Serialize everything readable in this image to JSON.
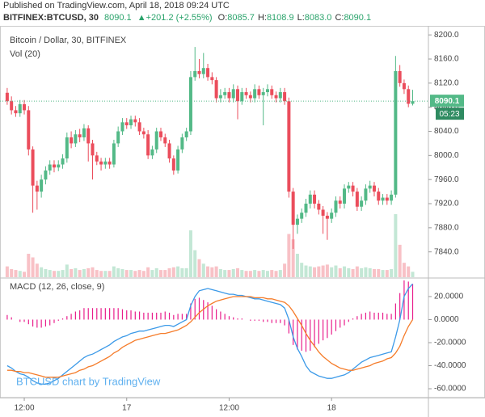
{
  "header": {
    "source": "Published on TradingView.com, April 18, 2018 09:24 UTC",
    "symbol": "BITFINEX:BTCUSD, 30",
    "change": "▲+201.2 (+2.55%)",
    "ohlc": [
      {
        "key": "O:",
        "value": "8085.7"
      },
      {
        "key": "H:",
        "value": "8108.9"
      },
      {
        "key": "L:",
        "value": "8083.0"
      },
      {
        "key": "C:",
        "value": "8090.1"
      }
    ]
  },
  "watermark": "BTCUSD chart by TradingView",
  "chart_data": [
    {
      "type": "candlestick",
      "title": "Bitcoin / Dollar, 30, BITFINEX",
      "subtitle": "Vol (20)",
      "up_color": "#53b987",
      "down_color": "#eb4d5c",
      "categories": [
        null,
        null,
        null,
        null,
        "12:00",
        null,
        null,
        null,
        null,
        null,
        null,
        null,
        null,
        null,
        null,
        null,
        null,
        null,
        null,
        null,
        null,
        null,
        null,
        null,
        null,
        null,
        null,
        null,
        "17",
        null,
        null,
        null,
        null,
        null,
        null,
        null,
        null,
        null,
        null,
        null,
        null,
        null,
        null,
        null,
        null,
        null,
        null,
        null,
        null,
        null,
        null,
        null,
        "12:00",
        null,
        null,
        null,
        null,
        null,
        null,
        null,
        null,
        null,
        null,
        null,
        null,
        null,
        null,
        null,
        null,
        null,
        null,
        null,
        null,
        null,
        null,
        null,
        "18",
        null,
        null,
        null,
        null,
        null,
        null,
        null,
        null,
        null,
        null,
        null,
        null,
        null,
        null,
        null,
        null,
        null,
        null,
        null
      ],
      "open": [
        8104,
        8090,
        8075,
        8070,
        8085,
        8075,
        8010,
        7950,
        7940,
        7960,
        7975,
        7985,
        7980,
        7985,
        7995,
        8030,
        8020,
        8035,
        8030,
        8045,
        8020,
        8000,
        7990,
        7985,
        7990,
        7985,
        8020,
        8040,
        8055,
        8050,
        8060,
        8055,
        8040,
        8035,
        8000,
        8010,
        8040,
        8030,
        8020,
        7995,
        7975,
        8010,
        8030,
        8040,
        8130,
        8140,
        8135,
        8145,
        8130,
        8125,
        8095,
        8100,
        8105,
        8095,
        8110,
        8090,
        8105,
        8100,
        8095,
        8110,
        8100,
        8105,
        8110,
        8100,
        8095,
        8105,
        8090,
        7940,
        7885,
        7895,
        7905,
        7920,
        7935,
        7920,
        7910,
        7900,
        7895,
        7905,
        7925,
        7920,
        7945,
        7950,
        7940,
        7915,
        7925,
        7945,
        7950,
        7940,
        7925,
        7930,
        7925,
        7935,
        8140,
        8120,
        8110,
        8085.7
      ],
      "high": [
        8112,
        8098,
        8082,
        8092,
        8092,
        8082,
        8015,
        7958,
        7968,
        7982,
        7992,
        7992,
        7992,
        8002,
        8038,
        8040,
        8042,
        8044,
        8052,
        8050,
        8026,
        8006,
        7996,
        7996,
        7996,
        8026,
        8048,
        8062,
        8062,
        8066,
        8066,
        8062,
        8046,
        8042,
        8016,
        8046,
        8046,
        8036,
        8026,
        8000,
        8016,
        8036,
        8046,
        8140,
        8180,
        8160,
        8170,
        8152,
        8138,
        8130,
        8110,
        8112,
        8112,
        8118,
        8116,
        8112,
        8112,
        8106,
        8118,
        8116,
        8112,
        8118,
        8116,
        8106,
        8112,
        8112,
        8096,
        7946,
        7902,
        7912,
        7928,
        7942,
        7942,
        7926,
        7916,
        7906,
        7912,
        7932,
        7932,
        7952,
        7956,
        7956,
        7946,
        7932,
        7952,
        7958,
        7956,
        7946,
        7936,
        7936,
        7942,
        8165,
        8150,
        8126,
        8116,
        8108.9
      ],
      "low": [
        8084,
        8068,
        8064,
        8064,
        8068,
        8000,
        7905,
        7910,
        7930,
        7952,
        7968,
        7972,
        7974,
        7978,
        7988,
        8012,
        8014,
        8022,
        8024,
        7990,
        7960,
        7984,
        7975,
        7978,
        7978,
        7980,
        8014,
        8034,
        8044,
        8044,
        8048,
        8034,
        8028,
        7994,
        7994,
        8004,
        8024,
        8014,
        7988,
        7968,
        7970,
        8004,
        8024,
        8034,
        8124,
        8128,
        8128,
        8124,
        8118,
        8088,
        8088,
        8094,
        8088,
        8088,
        8060,
        8084,
        8094,
        8088,
        8088,
        8094,
        8050,
        8098,
        8094,
        8088,
        8088,
        8084,
        7930,
        7845,
        7870,
        7888,
        7898,
        7912,
        7912,
        7902,
        7870,
        7860,
        7888,
        7898,
        7912,
        7912,
        7938,
        7932,
        7908,
        7908,
        7918,
        7938,
        7932,
        7918,
        7918,
        7918,
        7918,
        7930,
        8114,
        8102,
        8080,
        8083
      ],
      "close": [
        8090,
        8075,
        8070,
        8085,
        8075,
        8010,
        7950,
        7940,
        7960,
        7975,
        7985,
        7980,
        7985,
        7995,
        8030,
        8020,
        8035,
        8030,
        8045,
        8020,
        8000,
        7990,
        7985,
        7990,
        7985,
        8020,
        8040,
        8055,
        8050,
        8060,
        8055,
        8040,
        8035,
        8000,
        8010,
        8040,
        8030,
        8020,
        7995,
        7975,
        8010,
        8030,
        8040,
        8130,
        8140,
        8135,
        8145,
        8130,
        8125,
        8095,
        8100,
        8105,
        8095,
        8110,
        8090,
        8105,
        8100,
        8095,
        8110,
        8100,
        8105,
        8110,
        8100,
        8095,
        8105,
        8090,
        7940,
        7885,
        7895,
        7905,
        7920,
        7935,
        7920,
        7910,
        7900,
        7895,
        7905,
        7925,
        7920,
        7945,
        7950,
        7940,
        7915,
        7925,
        7945,
        7950,
        7940,
        7925,
        7930,
        7925,
        7935,
        8140,
        8120,
        8110,
        8085.7,
        8090.1
      ],
      "volume": [
        120,
        90,
        80,
        70,
        60,
        260,
        220,
        150,
        110,
        90,
        80,
        70,
        70,
        80,
        140,
        90,
        100,
        80,
        90,
        100,
        110,
        80,
        70,
        70,
        70,
        120,
        100,
        90,
        80,
        80,
        70,
        80,
        70,
        110,
        80,
        100,
        80,
        80,
        100,
        110,
        120,
        100,
        100,
        520,
        300,
        200,
        150,
        120,
        110,
        120,
        90,
        80,
        80,
        90,
        100,
        80,
        70,
        70,
        80,
        70,
        80,
        70,
        80,
        70,
        80,
        150,
        480,
        420,
        260,
        160,
        130,
        120,
        110,
        120,
        130,
        140,
        110,
        130,
        100,
        120,
        100,
        90,
        120,
        100,
        110,
        100,
        90,
        90,
        80,
        80,
        90,
        700,
        360,
        160,
        120,
        60
      ],
      "ylim": [
        7798,
        8215
      ],
      "yticks": [
        {
          "value": 8200,
          "label": "8200.0"
        },
        {
          "value": 8160,
          "label": "8160.0"
        },
        {
          "value": 8120,
          "label": "8120.0"
        },
        {
          "value": 8080,
          "label": "8080.0"
        },
        {
          "value": 8040,
          "label": "8040.0"
        },
        {
          "value": 8000,
          "label": "8000.0"
        },
        {
          "value": 7960,
          "label": "7960.0"
        },
        {
          "value": 7920,
          "label": "7920.0"
        },
        {
          "value": 7880,
          "label": "7880.0"
        },
        {
          "value": 7840,
          "label": "7840.0"
        }
      ],
      "last_price": 8090.1,
      "countdown": "05:23",
      "grid": false
    },
    {
      "type": "macd",
      "title": "MACD (12, 26, close, 9)",
      "series": [
        {
          "style": "histogram",
          "color": "#e91e8c",
          "values": [
            4,
            2,
            0,
            -2,
            -2,
            -4,
            -6,
            -7,
            -7,
            -6,
            -5,
            -3,
            -1,
            1,
            3,
            5,
            7,
            8,
            10,
            10,
            10,
            10,
            10,
            10,
            10,
            10,
            10,
            9,
            8,
            8,
            7,
            7,
            6,
            6,
            6,
            6,
            6,
            7,
            6,
            4,
            5,
            5,
            5,
            14,
            18,
            19,
            17,
            15,
            12,
            9,
            7,
            5,
            3,
            2,
            1,
            1,
            0,
            -1,
            -1,
            -1,
            -2,
            -2,
            -3,
            -3,
            -3,
            -5,
            -12,
            -22,
            -26,
            -27,
            -28,
            -27,
            -24,
            -21,
            -18,
            -16,
            -13,
            -10,
            -7,
            -5,
            -2,
            1,
            3,
            5,
            6,
            7,
            6,
            6,
            6,
            5,
            5,
            14,
            23,
            34,
            33,
            31
          ]
        },
        {
          "style": "line",
          "color": "#3c9ae8",
          "values": [
            -40,
            -42,
            -45,
            -47,
            -48,
            -50,
            -53,
            -55,
            -56,
            -56,
            -55,
            -53,
            -51,
            -48,
            -45,
            -42,
            -39,
            -36,
            -33,
            -31,
            -30,
            -28,
            -26,
            -24,
            -22,
            -19,
            -17,
            -15,
            -14,
            -12,
            -11,
            -10,
            -10,
            -9,
            -8,
            -7,
            -6,
            -5,
            -5,
            -6,
            -4,
            -2,
            0,
            12,
            20,
            25,
            26,
            27,
            26,
            25,
            24,
            23,
            22,
            22,
            21,
            21,
            20,
            19,
            18,
            18,
            17,
            16,
            15,
            14,
            13,
            10,
            0,
            -15,
            -25,
            -32,
            -40,
            -45,
            -47,
            -49,
            -50,
            -51,
            -51,
            -50,
            -49,
            -48,
            -46,
            -43,
            -40,
            -37,
            -35,
            -33,
            -32,
            -31,
            -30,
            -29,
            -28,
            -15,
            0,
            20,
            27,
            31
          ]
        },
        {
          "style": "line",
          "color": "#f57c2a",
          "values": [
            -44,
            -44,
            -45,
            -45,
            -46,
            -46,
            -47,
            -48,
            -49,
            -50,
            -50,
            -50,
            -50,
            -49,
            -48,
            -47,
            -46,
            -44,
            -43,
            -41,
            -40,
            -38,
            -36,
            -34,
            -32,
            -29,
            -27,
            -24,
            -22,
            -20,
            -18,
            -17,
            -16,
            -15,
            -14,
            -13,
            -12,
            -12,
            -11,
            -10,
            -9,
            -7,
            -5,
            -2,
            2,
            6,
            9,
            12,
            14,
            16,
            17,
            18,
            19,
            20,
            20,
            20,
            20,
            20,
            19,
            19,
            19,
            18,
            18,
            17,
            16,
            15,
            12,
            7,
            1,
            -5,
            -12,
            -18,
            -23,
            -28,
            -32,
            -35,
            -38,
            -40,
            -42,
            -43,
            -44,
            -44,
            -43,
            -42,
            -41,
            -40,
            -38,
            -37,
            -36,
            -34,
            -33,
            -29,
            -23,
            -14,
            -6,
            0
          ]
        }
      ],
      "ylim": [
        -67.7,
        35.4
      ],
      "yticks": [
        {
          "value": 20,
          "label": "20.0000"
        },
        {
          "value": 0,
          "label": "0.0000"
        },
        {
          "value": -20,
          "label": "-20.0000"
        },
        {
          "value": -40,
          "label": "-40.0000"
        },
        {
          "value": -60,
          "label": "-60.0000"
        }
      ]
    }
  ]
}
